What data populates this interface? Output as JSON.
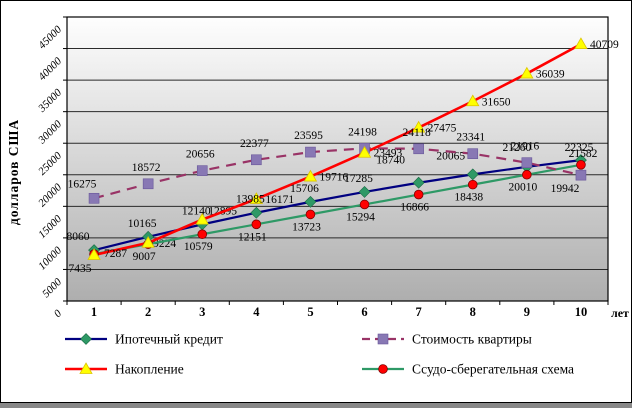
{
  "chart_data": {
    "type": "line",
    "title": "",
    "xlabel": "лет",
    "ylabel": "долларов США",
    "x": [
      1,
      2,
      3,
      4,
      5,
      6,
      7,
      8,
      9,
      10
    ],
    "xtick_labels": [
      "1",
      "2",
      "3",
      "4",
      "5",
      "6",
      "7",
      "8",
      "9",
      "10"
    ],
    "ytick_labels": [
      "0",
      "5000",
      "10000",
      "15000",
      "20000",
      "25000",
      "30000",
      "35000",
      "40000",
      "45000"
    ],
    "ylim": [
      0,
      45000
    ],
    "ytick_step": 5000,
    "grid": true,
    "legend_position": "bottom",
    "plot_bg_gradient": [
      "#FEFEFE",
      "#AEAEAE"
    ],
    "series": [
      {
        "name": "Ипотечный кредит",
        "line_color": "#000080",
        "line_style": "solid",
        "marker": "diamond",
        "marker_color": "#2E9966",
        "values": [
          8060,
          10165,
          12140,
          13985,
          15706,
          17285,
          18740,
          20065,
          21260,
          22325
        ]
      },
      {
        "name": "Стоимость квартиры",
        "line_color": "#993366",
        "line_style": "dashed",
        "marker": "square",
        "marker_color": "#8878B4",
        "values": [
          16275,
          18572,
          20656,
          22377,
          23595,
          24198,
          24118,
          23341,
          21916,
          19942
        ]
      },
      {
        "name": "Накопление",
        "line_color": "#FF0000",
        "line_style": "solid",
        "marker": "triangle",
        "marker_color": "#FFFF00",
        "values": [
          7287,
          9224,
          12895,
          16171,
          19716,
          23493,
          27475,
          31650,
          36039,
          40709
        ]
      },
      {
        "name": "Ссудо-сберегательная схема",
        "line_color": "#2E9966",
        "line_style": "solid",
        "marker": "circle",
        "marker_color": "#FF0000",
        "values": [
          7435,
          9007,
          10579,
          12151,
          13723,
          15294,
          16866,
          18438,
          20010,
          21582
        ]
      }
    ]
  }
}
